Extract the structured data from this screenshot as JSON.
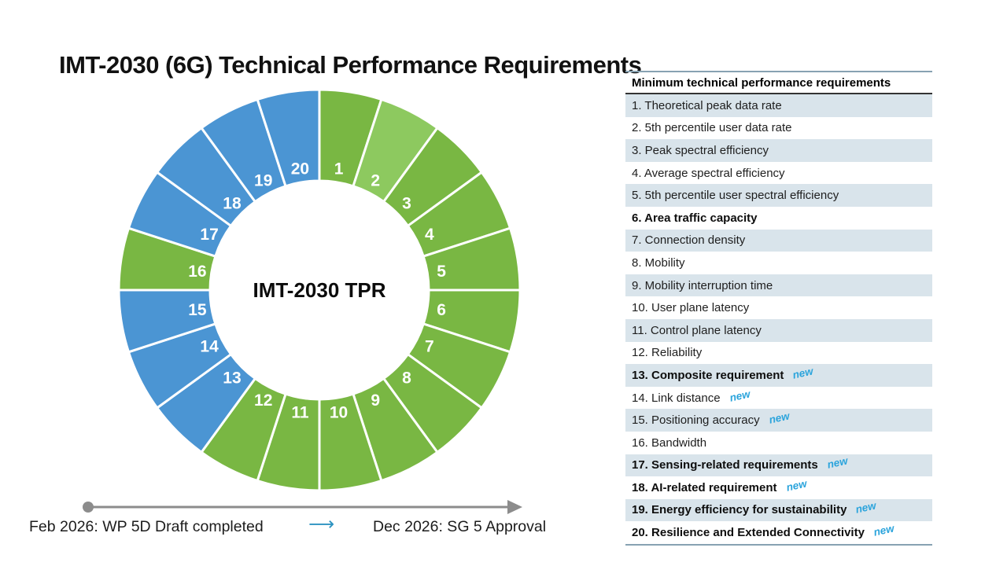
{
  "title": "IMT-2030 (6G) Technical Performance Requirements",
  "donut": {
    "center_label": "IMT-2030 TPR",
    "palette": {
      "green": "#79b743",
      "light_green": "#8dc95f",
      "blue": "#4b95d3"
    },
    "segments": [
      {
        "label": "1",
        "color": "green"
      },
      {
        "label": "2",
        "color": "light_green"
      },
      {
        "label": "3",
        "color": "green"
      },
      {
        "label": "4",
        "color": "green"
      },
      {
        "label": "5",
        "color": "green"
      },
      {
        "label": "6",
        "color": "green"
      },
      {
        "label": "7",
        "color": "green"
      },
      {
        "label": "8",
        "color": "green"
      },
      {
        "label": "9",
        "color": "green"
      },
      {
        "label": "10",
        "color": "green"
      },
      {
        "label": "11",
        "color": "green"
      },
      {
        "label": "12",
        "color": "green"
      },
      {
        "label": "13",
        "color": "blue"
      },
      {
        "label": "14",
        "color": "blue"
      },
      {
        "label": "15",
        "color": "blue"
      },
      {
        "label": "16",
        "color": "green"
      },
      {
        "label": "17",
        "color": "blue"
      },
      {
        "label": "18",
        "color": "blue"
      },
      {
        "label": "19",
        "color": "blue"
      },
      {
        "label": "20",
        "color": "blue"
      }
    ]
  },
  "table": {
    "header": "Minimum technical performance requirements",
    "new_label": "new",
    "stripe_color": "#d9e4eb",
    "rows": [
      {
        "text": "1. Theoretical peak data rate",
        "bold": false,
        "new": false
      },
      {
        "text": "2. 5th percentile user data rate",
        "bold": false,
        "new": false
      },
      {
        "text": "3. Peak spectral efficiency",
        "bold": false,
        "new": false
      },
      {
        "text": "4. Average spectral efficiency",
        "bold": false,
        "new": false
      },
      {
        "text": "5. 5th percentile user spectral efficiency",
        "bold": false,
        "new": false
      },
      {
        "text": "6. Area traffic capacity",
        "bold": true,
        "new": false
      },
      {
        "text": "7. Connection density",
        "bold": false,
        "new": false
      },
      {
        "text": "8. Mobility",
        "bold": false,
        "new": false
      },
      {
        "text": "9. Mobility interruption time",
        "bold": false,
        "new": false
      },
      {
        "text": "10. User plane latency",
        "bold": false,
        "new": false
      },
      {
        "text": "11. Control plane latency",
        "bold": false,
        "new": false
      },
      {
        "text": "12. Reliability",
        "bold": false,
        "new": false
      },
      {
        "text": "13. Composite requirement",
        "bold": true,
        "new": true
      },
      {
        "text": "14. Link distance",
        "bold": false,
        "new": true
      },
      {
        "text": "15. Positioning accuracy",
        "bold": false,
        "new": true
      },
      {
        "text": "16. Bandwidth",
        "bold": false,
        "new": false
      },
      {
        "text": "17. Sensing-related requirements",
        "bold": true,
        "new": true
      },
      {
        "text": "18. AI-related requirement",
        "bold": true,
        "new": true
      },
      {
        "text": "19. Energy efficiency for sustainability",
        "bold": true,
        "new": true
      },
      {
        "text": "20. Resilience and Extended Connectivity",
        "bold": true,
        "new": true
      }
    ]
  },
  "timeline": {
    "start_label": "Feb 2026: WP 5D Draft completed",
    "arrow_glyph": "⟶",
    "end_label": "Dec 2026: SG 5 Approval"
  },
  "chart_data": {
    "type": "pie",
    "subtype": "donut",
    "title": "IMT-2030 TPR",
    "direction": "clockwise",
    "start_angle_deg": 0,
    "labels": [
      "1",
      "2",
      "3",
      "4",
      "5",
      "6",
      "7",
      "8",
      "9",
      "10",
      "11",
      "12",
      "13",
      "14",
      "15",
      "16",
      "17",
      "18",
      "19",
      "20"
    ],
    "values": [
      1,
      1,
      1,
      1,
      1,
      1,
      1,
      1,
      1,
      1,
      1,
      1,
      1,
      1,
      1,
      1,
      1,
      1,
      1,
      1
    ],
    "colors": [
      "#79b743",
      "#8dc95f",
      "#79b743",
      "#79b743",
      "#79b743",
      "#79b743",
      "#79b743",
      "#79b743",
      "#79b743",
      "#79b743",
      "#79b743",
      "#79b743",
      "#4b95d3",
      "#4b95d3",
      "#4b95d3",
      "#79b743",
      "#4b95d3",
      "#4b95d3",
      "#4b95d3",
      "#4b95d3"
    ],
    "legend": [
      "Theoretical peak data rate",
      "5th percentile user data rate",
      "Peak spectral efficiency",
      "Average spectral efficiency",
      "5th percentile user spectral efficiency",
      "Area traffic capacity",
      "Connection density",
      "Mobility",
      "Mobility interruption time",
      "User plane latency",
      "Control plane latency",
      "Reliability",
      "Composite requirement",
      "Link distance",
      "Positioning accuracy",
      "Bandwidth",
      "Sensing-related requirements",
      "AI-related requirement",
      "Energy efficiency for sustainability",
      "Resilience and Extended Connectivity"
    ],
    "new_items": [
      13,
      14,
      15,
      17,
      18,
      19,
      20
    ],
    "legend_position": "right-table"
  }
}
